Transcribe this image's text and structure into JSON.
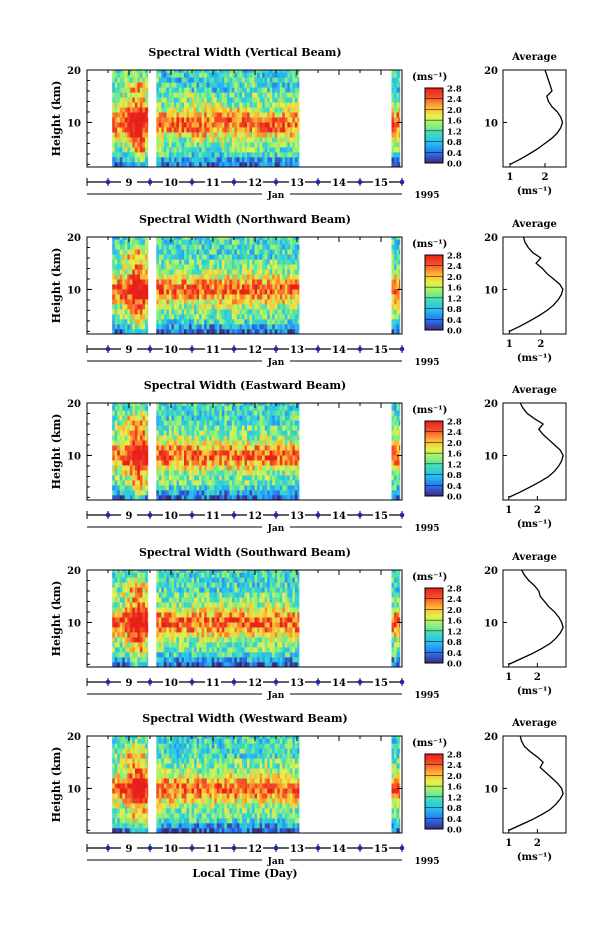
{
  "figure": {
    "xlabel": "Local Time (Day)",
    "month_label": "Jan",
    "year_label": "1995",
    "x_ticks": [
      "9",
      "10",
      "11",
      "12",
      "13",
      "14",
      "15"
    ],
    "ylabel": "Height (km)",
    "y_ticks": [
      "10",
      "20"
    ],
    "colorbar_unit": "(ms⁻¹)",
    "colorbar_ticks": [
      "0.0",
      "0.4",
      "0.8",
      "1.2",
      "1.6",
      "2.0",
      "2.4",
      "2.8"
    ],
    "colorscale": [
      "#3d2a7a",
      "#2a6df0",
      "#27b8f5",
      "#38d8c8",
      "#8af07a",
      "#e8f04a",
      "#ffb030",
      "#f5502a",
      "#e8201a"
    ],
    "avg_title": "Average",
    "avg_xlabel": "(ms⁻¹)"
  },
  "chart_data": [
    {
      "type": "heatmap",
      "title": "Spectral Width (Vertical Beam)",
      "xlabel": "Local Time (Day)",
      "ylabel": "Height (km)",
      "xlim": [
        8.0,
        15.5
      ],
      "ylim": [
        1.5,
        20
      ],
      "data_segments": [
        [
          8.6,
          9.45
        ],
        [
          9.65,
          13.05
        ],
        [
          15.25,
          15.45
        ]
      ],
      "colorbar": {
        "label": "(ms⁻¹)",
        "range": [
          0.0,
          2.8
        ]
      },
      "average_profile": {
        "title": "Average",
        "xlabel": "(ms⁻¹)",
        "x_ticks": [
          "1",
          "2"
        ],
        "xlim": [
          0.8,
          2.6
        ],
        "height_km": [
          2,
          3,
          4,
          5,
          6,
          7,
          8,
          9,
          10,
          11,
          12,
          13,
          14,
          15,
          16,
          17,
          18,
          19,
          20
        ],
        "width_ms": [
          1.0,
          1.3,
          1.55,
          1.8,
          2.0,
          2.2,
          2.35,
          2.45,
          2.5,
          2.45,
          2.35,
          2.2,
          2.1,
          2.05,
          2.2,
          2.15,
          2.1,
          2.05,
          2.0
        ]
      }
    },
    {
      "type": "heatmap",
      "title": "Spectral Width (Northward Beam)",
      "xlabel": "Local Time (Day)",
      "ylabel": "Height (km)",
      "xlim": [
        8.0,
        15.5
      ],
      "ylim": [
        1.5,
        20
      ],
      "data_segments": [
        [
          8.6,
          9.45
        ],
        [
          9.65,
          13.05
        ],
        [
          15.25,
          15.45
        ]
      ],
      "colorbar": {
        "label": "(ms⁻¹)",
        "range": [
          0.0,
          2.8
        ]
      },
      "average_profile": {
        "title": "Average",
        "xlabel": "(ms⁻¹)",
        "x_ticks": [
          "1",
          "2"
        ],
        "xlim": [
          0.8,
          2.8
        ],
        "height_km": [
          2,
          3,
          4,
          5,
          6,
          7,
          8,
          9,
          10,
          11,
          12,
          13,
          14,
          15,
          16,
          17,
          18,
          19,
          20
        ],
        "width_ms": [
          1.0,
          1.35,
          1.65,
          1.95,
          2.2,
          2.4,
          2.55,
          2.65,
          2.7,
          2.6,
          2.4,
          2.2,
          2.05,
          1.85,
          2.0,
          1.75,
          1.6,
          1.5,
          1.45
        ]
      }
    },
    {
      "type": "heatmap",
      "title": "Spectral Width (Eastward Beam)",
      "xlabel": "Local Time (Day)",
      "ylabel": "Height (km)",
      "xlim": [
        8.0,
        15.5
      ],
      "ylim": [
        1.5,
        20
      ],
      "data_segments": [
        [
          8.6,
          9.45
        ],
        [
          9.65,
          13.05
        ],
        [
          15.25,
          15.45
        ]
      ],
      "colorbar": {
        "label": "(ms⁻¹)",
        "range": [
          0.0,
          2.8
        ]
      },
      "average_profile": {
        "title": "Average",
        "xlabel": "(ms⁻¹)",
        "x_ticks": [
          "1",
          "2"
        ],
        "xlim": [
          0.8,
          3.0
        ],
        "height_km": [
          2,
          3,
          4,
          5,
          6,
          7,
          8,
          9,
          10,
          11,
          12,
          13,
          14,
          15,
          16,
          17,
          18,
          19,
          20
        ],
        "width_ms": [
          1.0,
          1.4,
          1.75,
          2.1,
          2.4,
          2.6,
          2.75,
          2.85,
          2.9,
          2.8,
          2.6,
          2.4,
          2.2,
          2.05,
          2.2,
          1.9,
          1.65,
          1.5,
          1.4
        ]
      }
    },
    {
      "type": "heatmap",
      "title": "Spectral Width (Southward Beam)",
      "xlabel": "Local Time (Day)",
      "ylabel": "Height (km)",
      "xlim": [
        8.0,
        15.5
      ],
      "ylim": [
        1.5,
        20
      ],
      "data_segments": [
        [
          8.6,
          9.45
        ],
        [
          9.65,
          13.05
        ],
        [
          15.25,
          15.45
        ]
      ],
      "colorbar": {
        "label": "(ms⁻¹)",
        "range": [
          0.0,
          2.8
        ]
      },
      "average_profile": {
        "title": "Average",
        "xlabel": "(ms⁻¹)",
        "x_ticks": [
          "1",
          "2"
        ],
        "xlim": [
          0.8,
          3.0
        ],
        "height_km": [
          2,
          3,
          4,
          5,
          6,
          7,
          8,
          9,
          10,
          11,
          12,
          13,
          14,
          15,
          16,
          17,
          18,
          19,
          20
        ],
        "width_ms": [
          1.0,
          1.4,
          1.8,
          2.15,
          2.45,
          2.65,
          2.8,
          2.9,
          2.85,
          2.75,
          2.6,
          2.4,
          2.25,
          2.1,
          2.05,
          1.9,
          1.7,
          1.55,
          1.45
        ]
      }
    },
    {
      "type": "heatmap",
      "title": "Spectral Width (Westward Beam)",
      "xlabel": "Local Time (Day)",
      "ylabel": "Height (km)",
      "xlim": [
        8.0,
        15.5
      ],
      "ylim": [
        1.5,
        20
      ],
      "data_segments": [
        [
          8.6,
          9.45
        ],
        [
          9.65,
          13.05
        ],
        [
          15.25,
          15.45
        ]
      ],
      "colorbar": {
        "label": "(ms⁻¹)",
        "range": [
          0.0,
          2.8
        ]
      },
      "average_profile": {
        "title": "Average",
        "xlabel": "(ms⁻¹)",
        "x_ticks": [
          "1",
          "2"
        ],
        "xlim": [
          0.8,
          3.0
        ],
        "height_km": [
          2,
          3,
          4,
          5,
          6,
          7,
          8,
          9,
          10,
          11,
          12,
          13,
          14,
          15,
          16,
          17,
          18,
          19,
          20
        ],
        "width_ms": [
          1.0,
          1.4,
          1.8,
          2.15,
          2.45,
          2.65,
          2.8,
          2.9,
          2.85,
          2.7,
          2.5,
          2.3,
          2.1,
          2.2,
          2.0,
          1.75,
          1.55,
          1.45,
          1.4
        ]
      }
    }
  ]
}
